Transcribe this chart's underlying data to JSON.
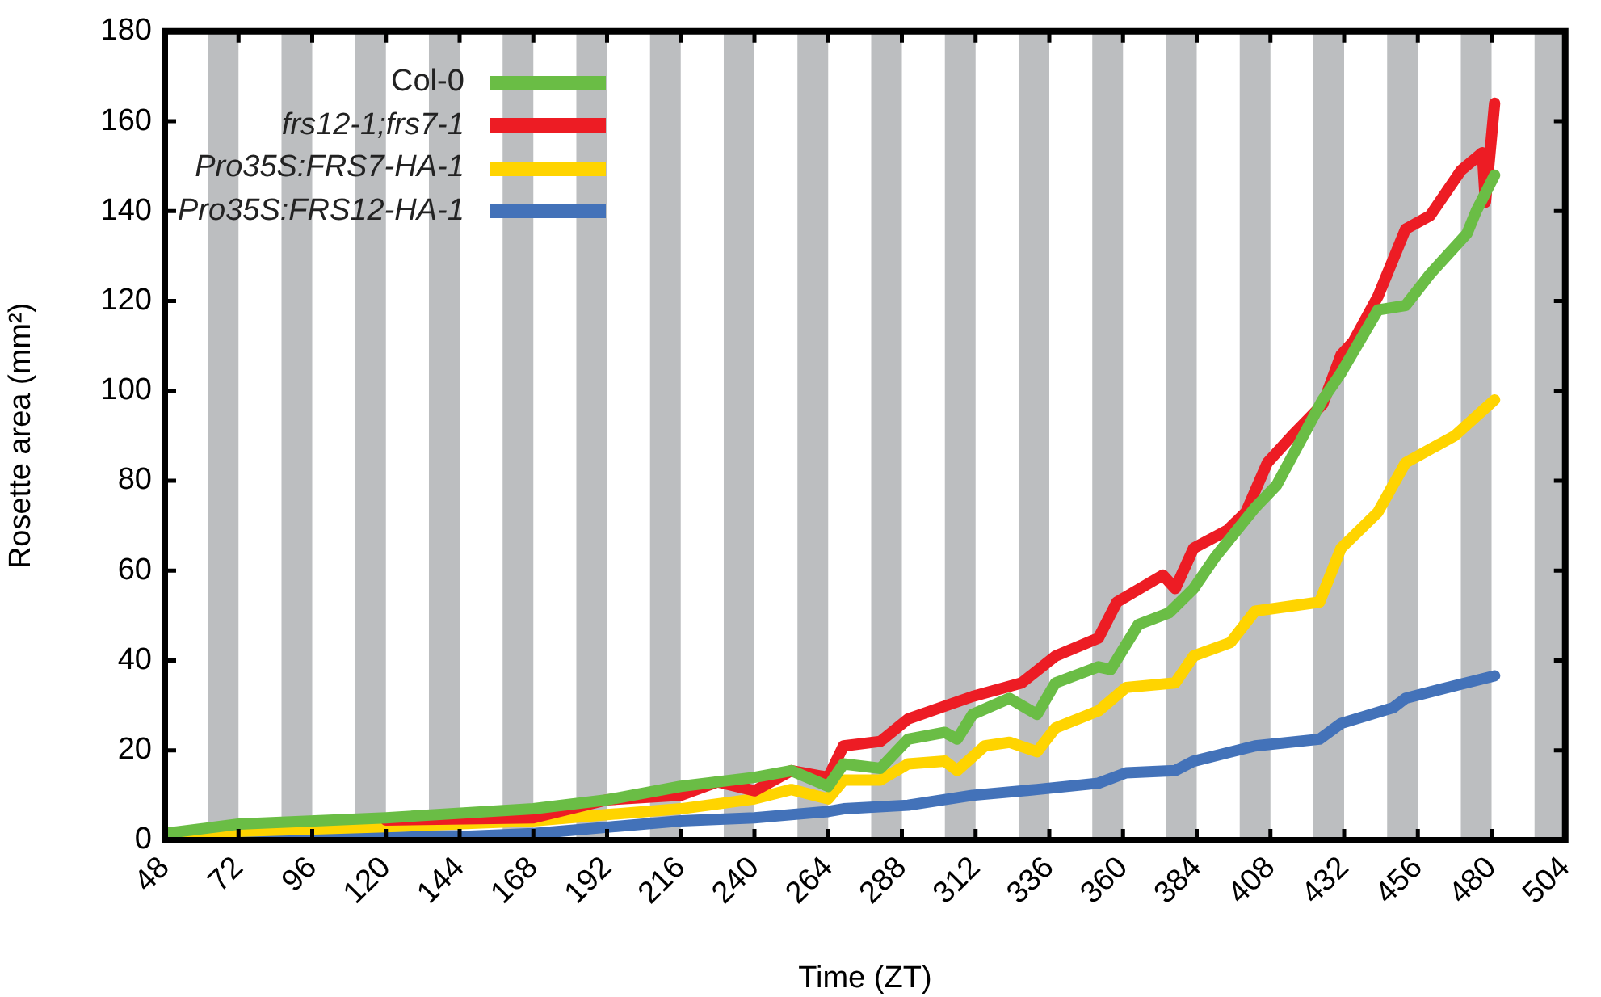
{
  "chart_data": {
    "type": "line",
    "xlabel": "Time (ZT)",
    "ylabel": "Rosette area (mm²)",
    "xlim": [
      48,
      504
    ],
    "ylim": [
      0,
      180
    ],
    "xticks": [
      48,
      72,
      96,
      120,
      144,
      168,
      192,
      216,
      240,
      264,
      288,
      312,
      336,
      360,
      384,
      408,
      432,
      456,
      480,
      504
    ],
    "yticks": [
      0,
      20,
      40,
      60,
      80,
      100,
      120,
      140,
      160,
      180
    ],
    "grid": false,
    "legend": "top left",
    "marker": "none",
    "line_style": "solid",
    "bands": [
      {
        "axis": "x",
        "from": 62,
        "to": 72,
        "color": "#bcbec0"
      },
      {
        "axis": "x",
        "from": 86,
        "to": 96,
        "color": "#bcbec0"
      },
      {
        "axis": "x",
        "from": 110,
        "to": 120,
        "color": "#bcbec0"
      },
      {
        "axis": "x",
        "from": 134,
        "to": 144,
        "color": "#bcbec0"
      },
      {
        "axis": "x",
        "from": 158,
        "to": 168,
        "color": "#bcbec0"
      },
      {
        "axis": "x",
        "from": 182,
        "to": 192,
        "color": "#bcbec0"
      },
      {
        "axis": "x",
        "from": 206,
        "to": 216,
        "color": "#bcbec0"
      },
      {
        "axis": "x",
        "from": 230,
        "to": 240,
        "color": "#bcbec0"
      },
      {
        "axis": "x",
        "from": 254,
        "to": 264,
        "color": "#bcbec0"
      },
      {
        "axis": "x",
        "from": 278,
        "to": 288,
        "color": "#bcbec0"
      },
      {
        "axis": "x",
        "from": 302,
        "to": 312,
        "color": "#bcbec0"
      },
      {
        "axis": "x",
        "from": 326,
        "to": 336,
        "color": "#bcbec0"
      },
      {
        "axis": "x",
        "from": 350,
        "to": 360,
        "color": "#bcbec0"
      },
      {
        "axis": "x",
        "from": 374,
        "to": 384,
        "color": "#bcbec0"
      },
      {
        "axis": "x",
        "from": 398,
        "to": 408,
        "color": "#bcbec0"
      },
      {
        "axis": "x",
        "from": 422,
        "to": 432,
        "color": "#bcbec0"
      },
      {
        "axis": "x",
        "from": 446,
        "to": 456,
        "color": "#bcbec0"
      },
      {
        "axis": "x",
        "from": 470,
        "to": 480,
        "color": "#bcbec0"
      },
      {
        "axis": "x",
        "from": 494,
        "to": 504,
        "color": "#bcbec0"
      }
    ],
    "series": [
      {
        "name": "Col-0",
        "color": "#6abd45",
        "x": [
          48,
          72,
          120,
          168,
          192,
          216,
          240,
          252,
          264,
          269,
          281,
          290,
          302,
          306,
          311,
          323,
          332,
          338,
          352,
          356,
          365,
          375,
          383,
          390,
          403,
          410,
          425,
          431,
          443,
          452,
          460,
          472,
          475,
          481
        ],
        "values": [
          1.5,
          3.6,
          5,
          7,
          9,
          12,
          14,
          15.5,
          12,
          17,
          16,
          22.5,
          24,
          22.5,
          28,
          31.6,
          28,
          35,
          38.6,
          38,
          48,
          50.6,
          56,
          63,
          74,
          79,
          98,
          104,
          118,
          119,
          126,
          135,
          140,
          148
        ]
      },
      {
        "name": "frs12-1;frs7-1",
        "color": "#ed1c24",
        "x": [
          120,
          168,
          192,
          216,
          228,
          240,
          252,
          264,
          269,
          281,
          290,
          311,
          327,
          338,
          352,
          358,
          373,
          377,
          383,
          394,
          400,
          407,
          415,
          425,
          431,
          435,
          443,
          452,
          460,
          470,
          477,
          478,
          481
        ],
        "values": [
          4.5,
          5,
          9,
          10,
          13,
          11,
          15.5,
          14,
          21,
          22,
          27,
          32,
          35,
          41,
          45,
          53,
          59,
          56,
          65,
          69,
          73,
          84,
          90,
          97,
          108,
          111,
          121,
          136,
          139,
          149,
          153,
          142,
          164
        ]
      },
      {
        "name": "Pro35S:FRS7-HA-1",
        "color": "#ffd400",
        "x": [
          48,
          120,
          168,
          192,
          216,
          240,
          252,
          264,
          269,
          281,
          290,
          302,
          306,
          315,
          323,
          332,
          338,
          352,
          361,
          377,
          383,
          395,
          403,
          424,
          431,
          443,
          452,
          468,
          481
        ],
        "values": [
          1.5,
          3,
          4.3,
          5.7,
          7,
          9.2,
          11.3,
          9.2,
          13.4,
          13.4,
          17,
          17.6,
          15.5,
          21,
          21.8,
          19.7,
          25,
          28.8,
          34,
          35,
          41,
          44,
          51,
          53,
          65,
          73,
          84,
          90,
          98
        ]
      },
      {
        "name": "Pro35S:FRS12-HA-1",
        "color": "#4372b9",
        "x": [
          48,
          96,
          144,
          168,
          192,
          216,
          240,
          264,
          269,
          290,
          311,
          332,
          352,
          361,
          377,
          383,
          403,
          424,
          431,
          448,
          452,
          468,
          481
        ],
        "values": [
          0.5,
          0.5,
          0.8,
          1.5,
          2.9,
          4.3,
          5,
          6.4,
          7,
          7.8,
          10,
          11.3,
          12.7,
          15,
          15.5,
          17.6,
          21,
          22.5,
          26,
          29.5,
          31.6,
          34.4,
          36.6
        ]
      }
    ]
  }
}
